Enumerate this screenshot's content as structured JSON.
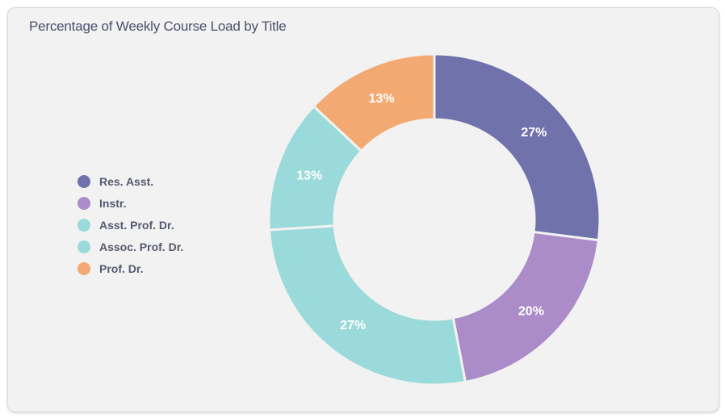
{
  "chart_data": {
    "type": "pie",
    "variant": "donut",
    "title": "Percentage of Weekly Course Load by Title",
    "legend_position": "left",
    "categories": [
      "Res. Asst.",
      "Instr.",
      "Asst. Prof. Dr.",
      "Assoc. Prof. Dr.",
      "Prof. Dr."
    ],
    "values": [
      27,
      20,
      27,
      13,
      13
    ],
    "labels": [
      "27%",
      "20%",
      "27%",
      "13%",
      "13%"
    ],
    "colors": [
      "#6f72ab",
      "#ab8bc8",
      "#9bdada",
      "#9bdada",
      "#f3a972"
    ]
  }
}
